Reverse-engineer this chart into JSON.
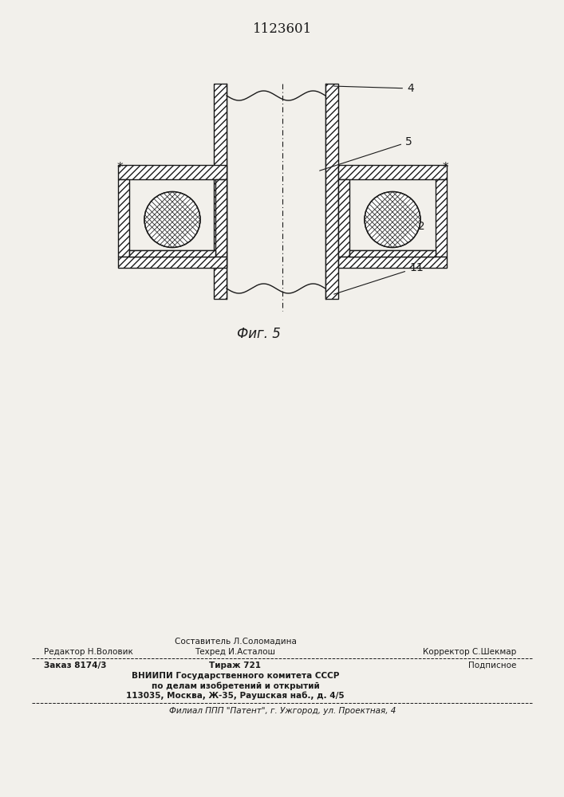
{
  "patent_number": "1123601",
  "fig_label": "Фиг. 5",
  "footer": {
    "editor": "Редактор Н.Воловик",
    "composer": "Составитель Л.Соломадина",
    "techred": "Техред И.Асталош",
    "corrector": "Корректор С.Шекмар",
    "order": "Заказ 8174/3",
    "tirazh": "Тираж 721",
    "podpisnoe": "Подписное",
    "vnipi_line1": "ВНИИПИ Государственного комитета СССР",
    "vnipi_line2": "по делам изобретений и открытий",
    "vnipi_line3": "113035, Москва, Ж-35, Раушская наб., д. 4/5",
    "filial": "Филиал ППП \"Патент\", г. Ужгород, ул. Проектная, 4"
  },
  "bg_color": "#f2f0eb",
  "line_color": "#1a1a1a"
}
